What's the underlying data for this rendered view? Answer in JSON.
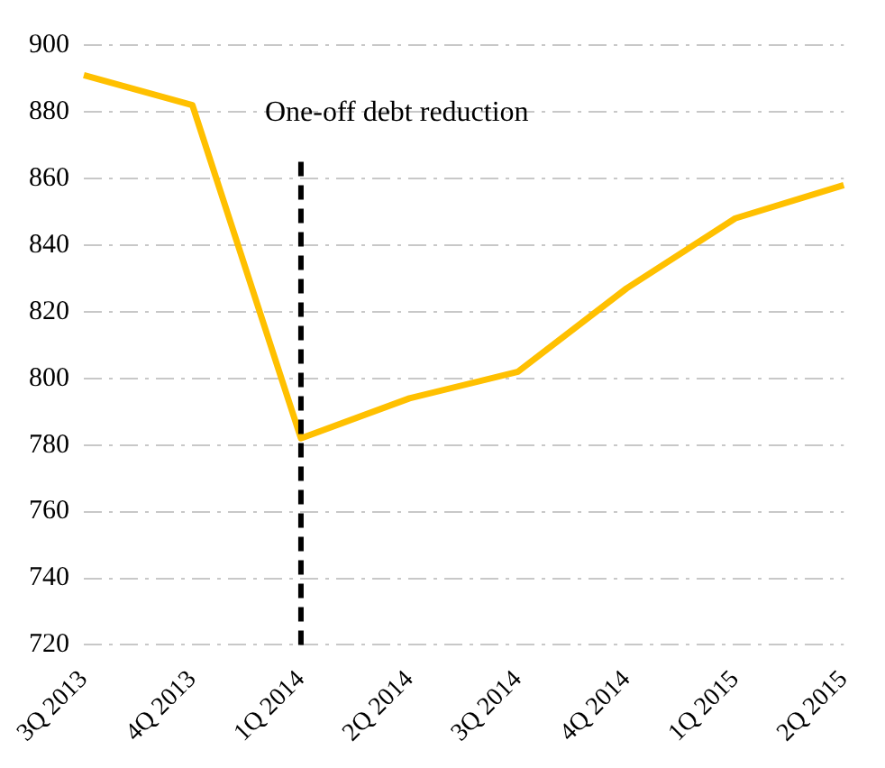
{
  "chart_data": {
    "type": "line",
    "categories": [
      "3Q 2013",
      "4Q 2013",
      "1Q 2014",
      "2Q 2014",
      "3Q 2014",
      "4Q 2014",
      "1Q 2015",
      "2Q 2015"
    ],
    "series": [
      {
        "color": "#ffc000",
        "values": [
          891,
          882,
          782,
          794,
          802,
          827,
          848,
          858
        ]
      }
    ],
    "ylim": [
      720,
      900
    ],
    "yticks": [
      720,
      740,
      760,
      780,
      800,
      820,
      840,
      860,
      880,
      900
    ],
    "grid": "y",
    "legend": false,
    "marker": "none",
    "line_style": "solid",
    "ref_lines": [
      {
        "axis": "x",
        "value": "1Q 2014",
        "label": "One-off debt reduction",
        "color": "#000000",
        "line_style": "dashed"
      }
    ]
  }
}
